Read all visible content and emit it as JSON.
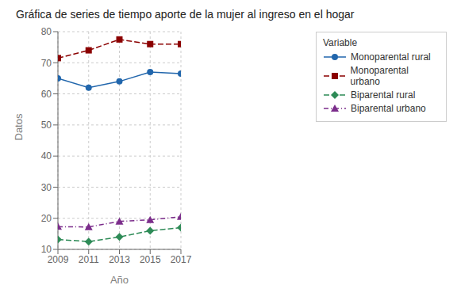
{
  "chart_data": {
    "type": "line",
    "title": "Gráfica de series de tiempo aporte de la mujer al ingreso en el hogar",
    "x_label": "Año",
    "y_label": "Datos",
    "legend_title": "Variable",
    "x": [
      2009,
      2011,
      2013,
      2015,
      2017
    ],
    "xlim": [
      2009,
      2017
    ],
    "xticks": [
      2009,
      2011,
      2013,
      2015,
      2017
    ],
    "ylim": [
      10,
      80
    ],
    "yticks": [
      10,
      20,
      30,
      40,
      50,
      60,
      70,
      80
    ],
    "grid": true,
    "legend": "right",
    "series": [
      {
        "name": "Monoparental rural",
        "color": "#2166ac",
        "marker": "circle",
        "line_style": "solid",
        "values": [
          65.0,
          62.0,
          64.0,
          67.0,
          66.5
        ]
      },
      {
        "name": "Monoparental urbano",
        "color": "#8b0000",
        "marker": "square",
        "line_style": "dashed",
        "values": [
          71.5,
          74.0,
          77.5,
          76.0,
          76.0
        ]
      },
      {
        "name": "Biparental rural",
        "color": "#2e8b57",
        "marker": "diamond",
        "line_style": "dashed",
        "values": [
          13.2,
          12.5,
          14.0,
          16.0,
          17.0
        ]
      },
      {
        "name": "Biparental urbano",
        "color": "#7b2d8b",
        "marker": "triangle",
        "line_style": "dashdot",
        "values": [
          17.3,
          17.2,
          19.0,
          19.5,
          20.5
        ]
      }
    ]
  }
}
